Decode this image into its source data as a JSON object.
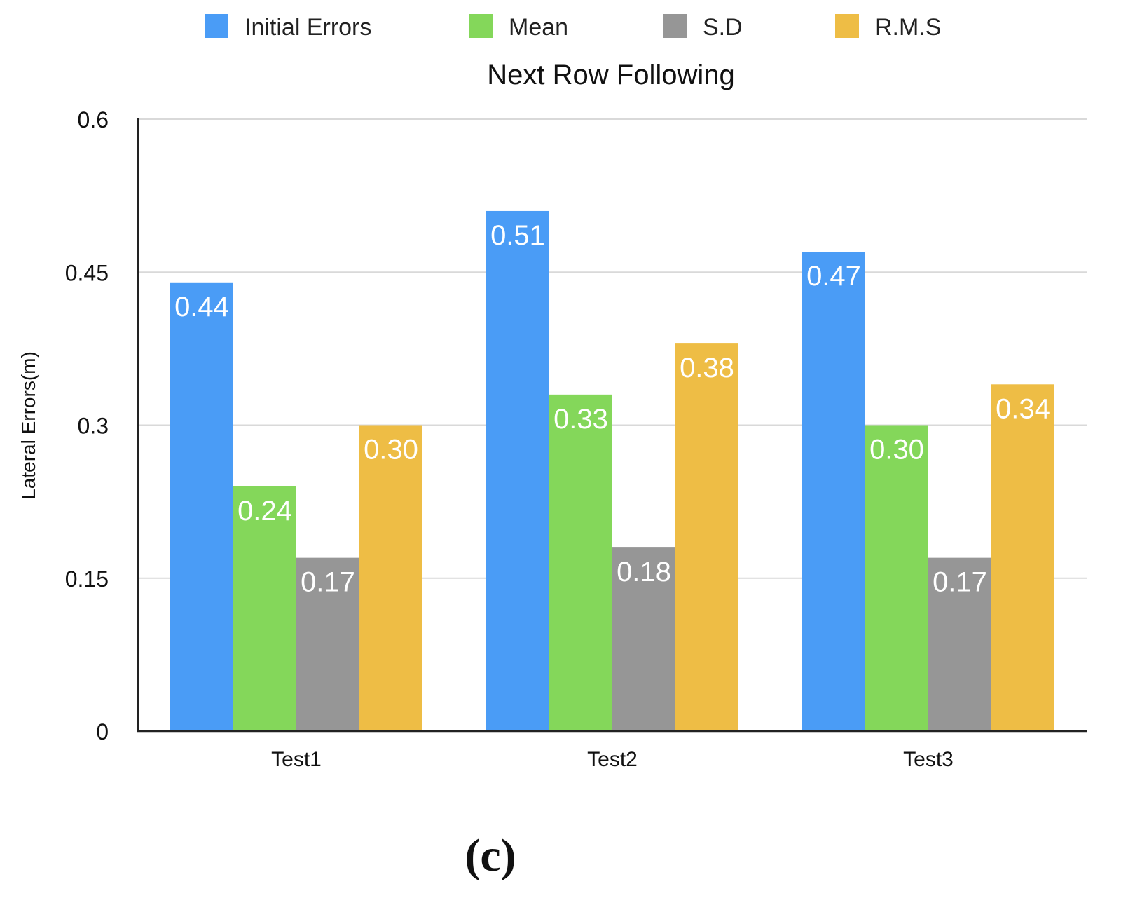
{
  "chart_data": {
    "type": "bar",
    "title": "Next Row Following",
    "xlabel": "",
    "ylabel": "Lateral Errors(m)",
    "ylim": [
      0,
      0.6
    ],
    "yticks": [
      0,
      0.15,
      0.3,
      0.45,
      0.6
    ],
    "ytick_labels": [
      "0",
      "0.15",
      "0.3",
      "0.45",
      "0.6"
    ],
    "grid": true,
    "legend_position": "top-center",
    "categories": [
      "Test1",
      "Test2",
      "Test3"
    ],
    "series": [
      {
        "name": "Initial Errors",
        "color": "#4a9cf6",
        "values": [
          0.44,
          0.51,
          0.47
        ],
        "labels": [
          "0.44",
          "0.51",
          "0.47"
        ]
      },
      {
        "name": "Mean",
        "color": "#84d75a",
        "values": [
          0.24,
          0.33,
          0.3
        ],
        "labels": [
          "0.24",
          "0.33",
          "0.30"
        ]
      },
      {
        "name": "S.D",
        "color": "#969696",
        "values": [
          0.17,
          0.18,
          0.17
        ],
        "labels": [
          "0.17",
          "0.18",
          "0.17"
        ]
      },
      {
        "name": "R.M.S",
        "color": "#eebd45",
        "values": [
          0.3,
          0.38,
          0.34
        ],
        "labels": [
          "0.30",
          "0.38",
          "0.34"
        ]
      }
    ]
  },
  "caption": "(c)"
}
